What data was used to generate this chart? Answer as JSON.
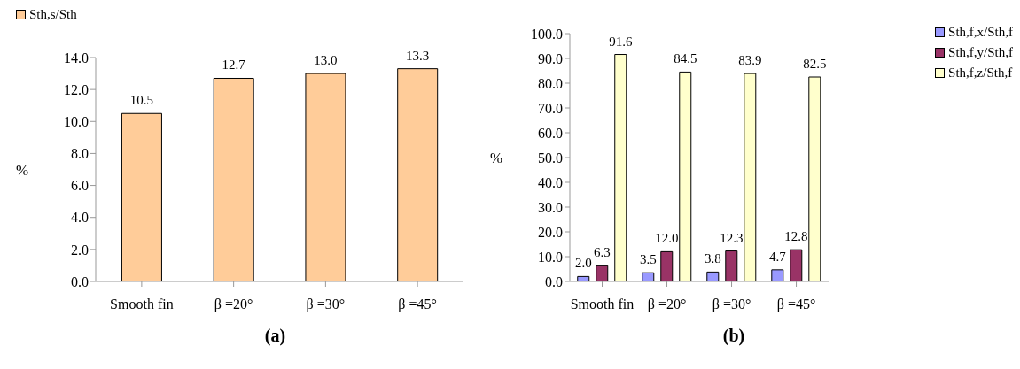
{
  "chart_data": [
    {
      "type": "bar",
      "title": "(a)",
      "ylabel": "%",
      "categories": [
        "Smooth fin",
        "β =20°",
        "β =30°",
        "β =45°"
      ],
      "series": [
        {
          "name": "Sth,s/Sth",
          "color": "#ffcc99",
          "values": [
            10.5,
            12.7,
            13.0,
            13.3
          ],
          "value_labels": [
            "10.5",
            "12.7",
            "13.0",
            "13.3"
          ]
        }
      ],
      "ylim": [
        0,
        14
      ],
      "yticks": [
        {
          "value": 0,
          "label": "0.0"
        },
        {
          "value": 2,
          "label": "2.0"
        },
        {
          "value": 4,
          "label": "4.0"
        },
        {
          "value": 6,
          "label": "6.0"
        },
        {
          "value": 8,
          "label": "8.0"
        },
        {
          "value": 10,
          "label": "10.0"
        },
        {
          "value": 12,
          "label": "12.0"
        },
        {
          "value": 14,
          "label": "14.0"
        }
      ],
      "legend": "top",
      "grid": false
    },
    {
      "type": "bar",
      "title": "(b)",
      "ylabel": "%",
      "categories": [
        "Smooth fin",
        "β =20°",
        "β =30°",
        "β =45°"
      ],
      "series": [
        {
          "name": "Sth,f,x/Sth,f",
          "color": "#9999ff",
          "values": [
            2.0,
            3.5,
            3.8,
            4.7
          ],
          "value_labels": [
            "2.0",
            "3.5",
            "3.8",
            "4.7"
          ]
        },
        {
          "name": "Sth,f,y/Sth,f",
          "color": "#993366",
          "values": [
            6.3,
            12.0,
            12.3,
            12.8
          ],
          "value_labels": [
            "6.3",
            "12.0",
            "12.3",
            "12.8"
          ]
        },
        {
          "name": "Sth,f,z/Sth,f",
          "color": "#ffffcc",
          "values": [
            91.6,
            84.5,
            83.9,
            82.5
          ],
          "value_labels": [
            "91.6",
            "84.5",
            "83.9",
            "82.5"
          ]
        }
      ],
      "ylim": [
        0,
        100
      ],
      "yticks": [
        {
          "value": 0,
          "label": "0.0"
        },
        {
          "value": 10,
          "label": "10.0"
        },
        {
          "value": 20,
          "label": "20.0"
        },
        {
          "value": 30,
          "label": "30.0"
        },
        {
          "value": 40,
          "label": "40.0"
        },
        {
          "value": 50,
          "label": "50.0"
        },
        {
          "value": 60,
          "label": "60.0"
        },
        {
          "value": 70,
          "label": "70.0"
        },
        {
          "value": 80,
          "label": "80.0"
        },
        {
          "value": 90,
          "label": "90.0"
        },
        {
          "value": 100,
          "label": "100.0"
        }
      ],
      "legend": "top right",
      "grid": false
    }
  ]
}
